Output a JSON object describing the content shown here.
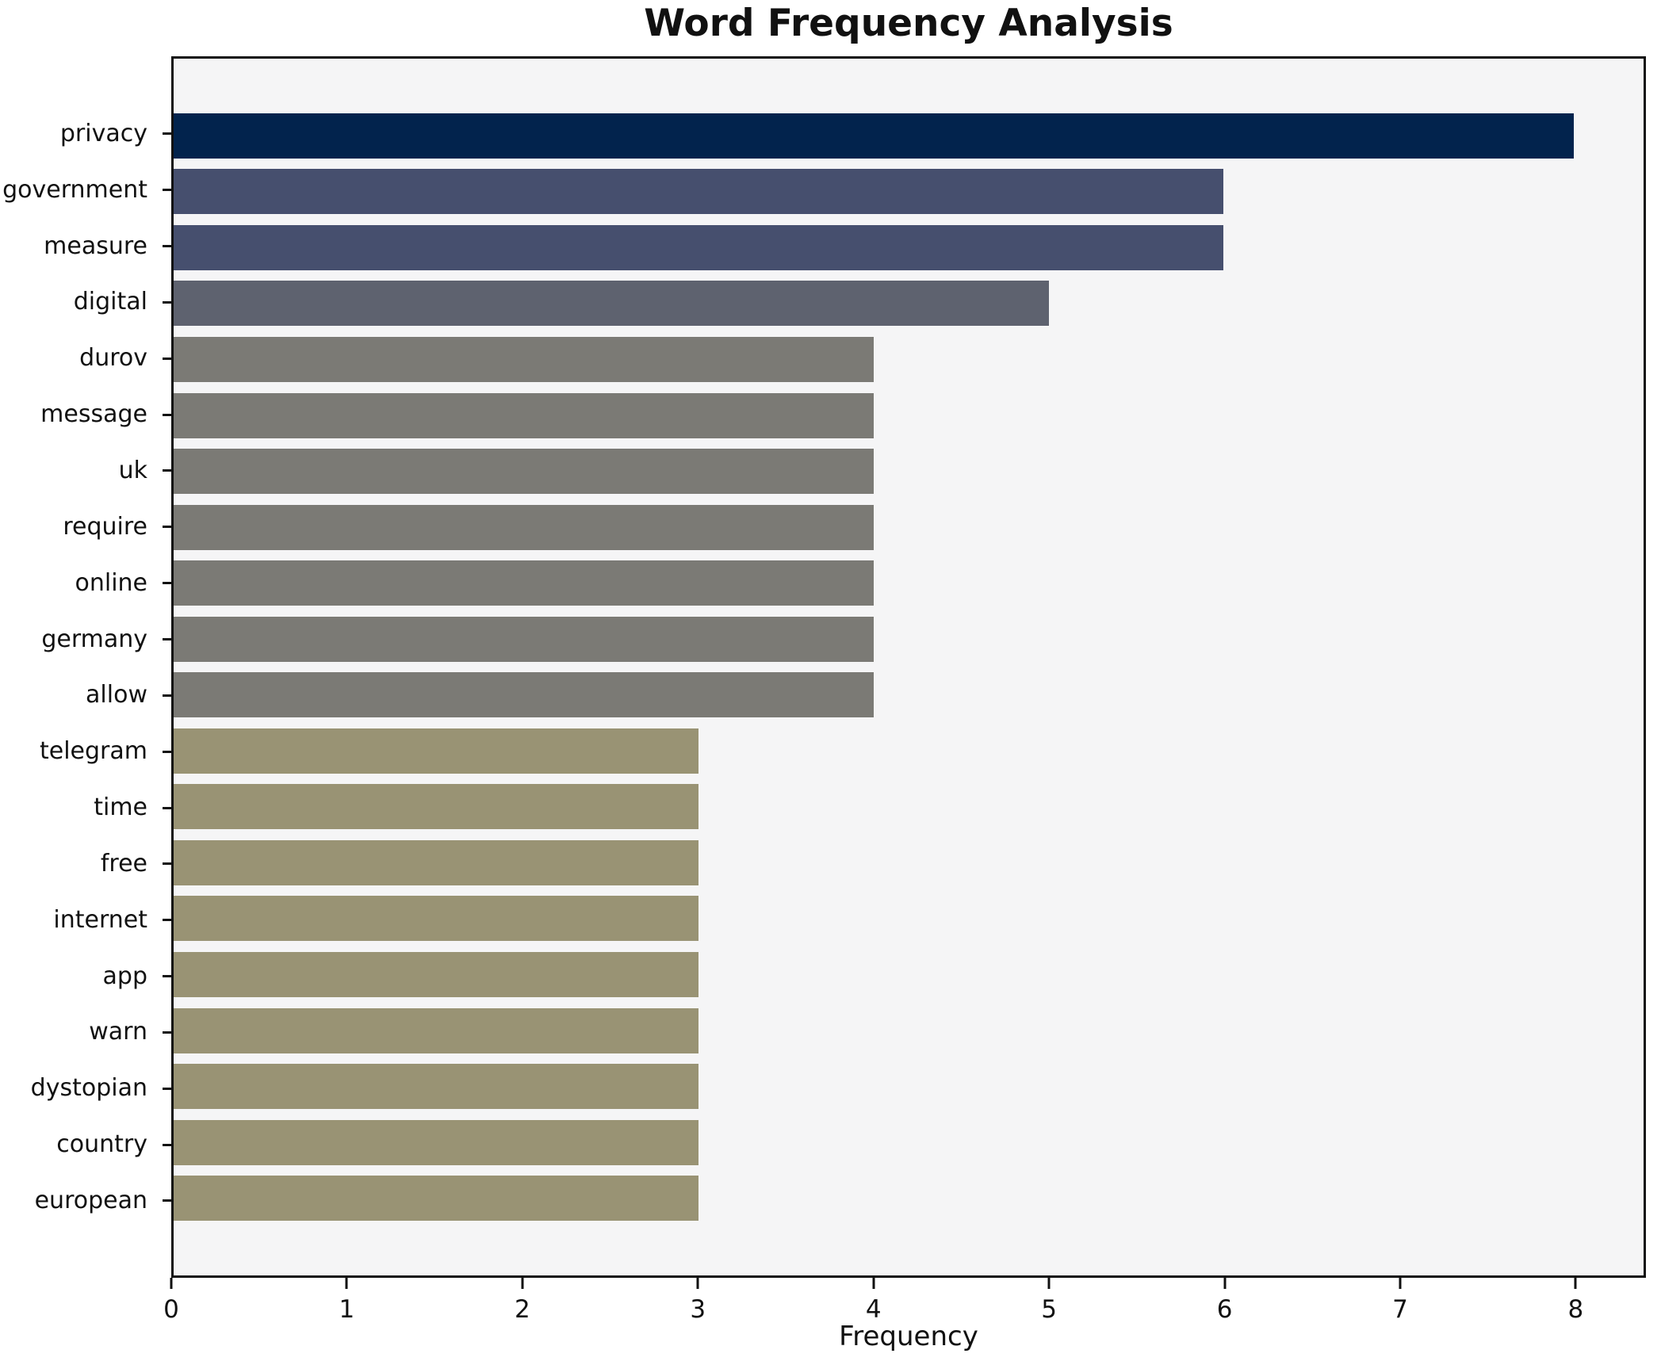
{
  "chart_data": {
    "type": "bar",
    "orientation": "horizontal",
    "title": "Word Frequency Analysis",
    "xlabel": "Frequency",
    "ylabel": "",
    "grid": false,
    "legend": false,
    "plot_background": "#f5f5f6",
    "axis_color": "#111111",
    "xlim": [
      0,
      8.4
    ],
    "x_ticks": [
      0,
      1,
      2,
      3,
      4,
      5,
      6,
      7,
      8
    ],
    "categories": [
      "privacy",
      "government",
      "measure",
      "digital",
      "durov",
      "message",
      "uk",
      "require",
      "online",
      "germany",
      "allow",
      "telegram",
      "time",
      "free",
      "internet",
      "app",
      "warn",
      "dystopian",
      "country",
      "european"
    ],
    "values": [
      8,
      6,
      6,
      5,
      4,
      4,
      4,
      4,
      4,
      4,
      4,
      3,
      3,
      3,
      3,
      3,
      3,
      3,
      3,
      3
    ],
    "bar_colors": [
      "#02234d",
      "#464f6e",
      "#464f6e",
      "#5e626f",
      "#7b7a75",
      "#7b7a75",
      "#7b7a75",
      "#7b7a75",
      "#7b7a75",
      "#7b7a75",
      "#7b7a75",
      "#999374",
      "#999374",
      "#999374",
      "#999374",
      "#999374",
      "#999374",
      "#999374",
      "#999374",
      "#999374"
    ]
  }
}
